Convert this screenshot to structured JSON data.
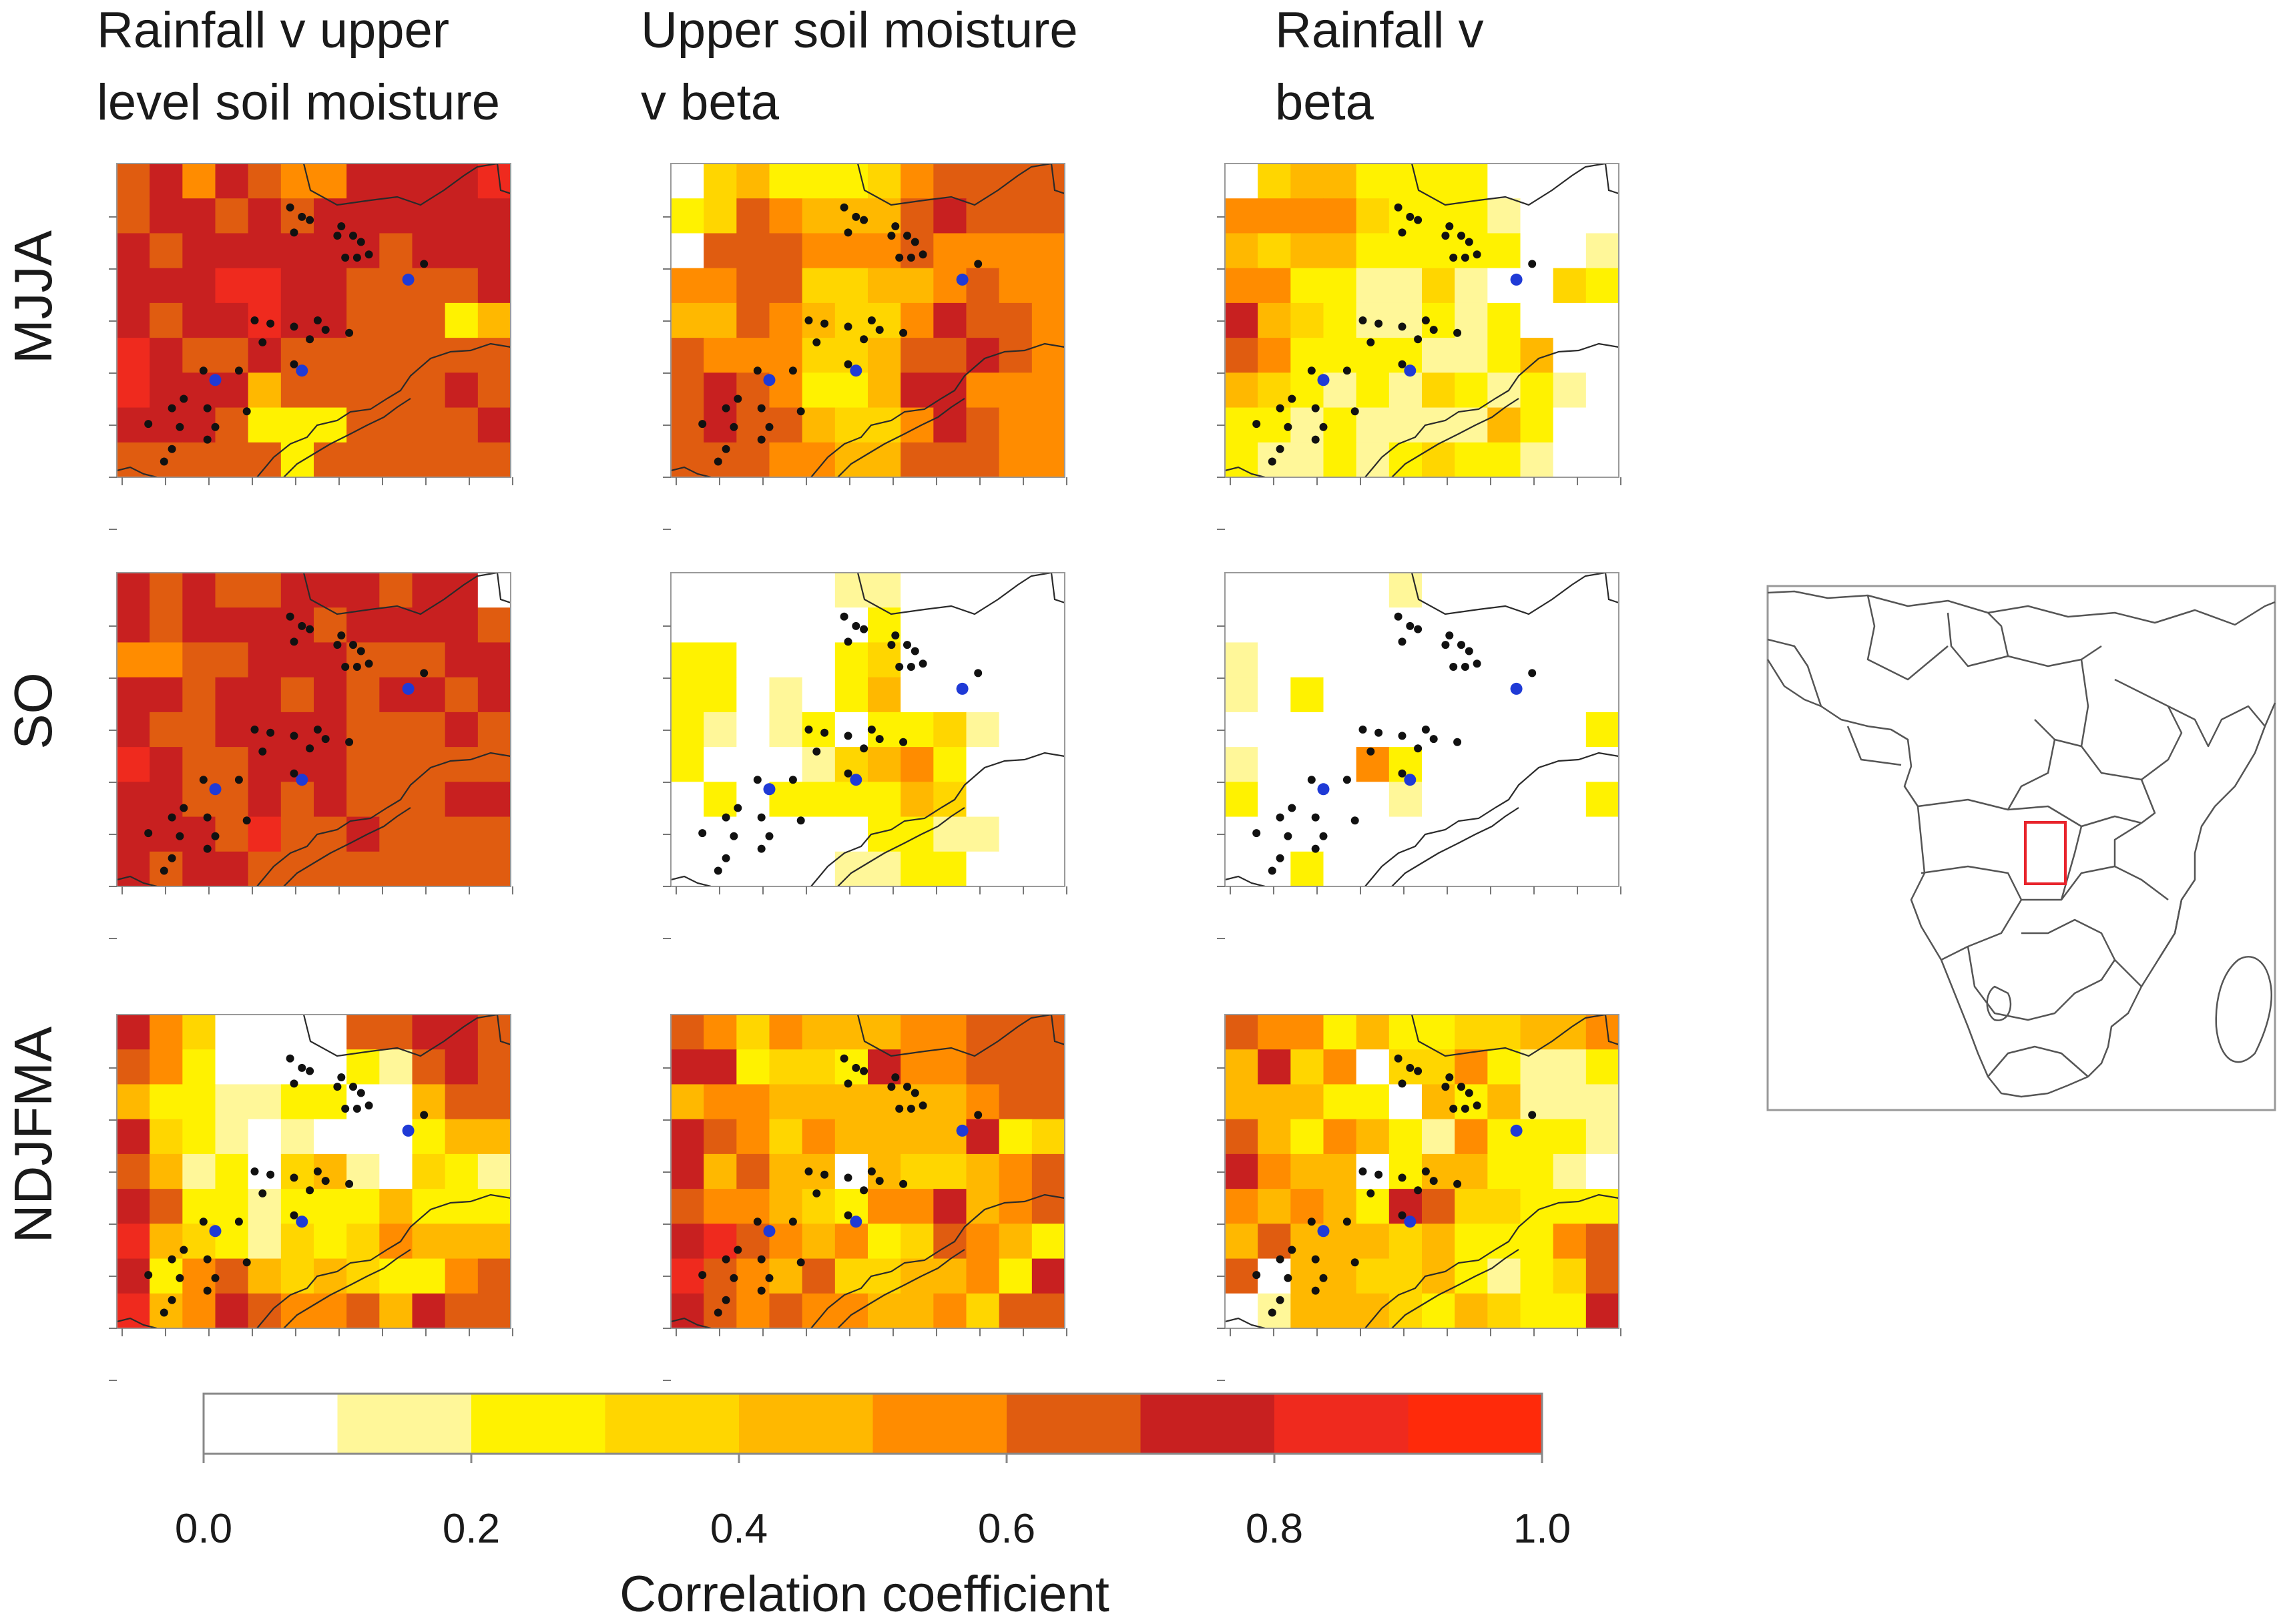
{
  "chart_data": {
    "type": "heatmap",
    "columns": [
      "Rainfall v upper\nlevel soil moisture",
      "Upper soil moisture\nv beta",
      "Rainfall v\nbeta"
    ],
    "rows": [
      "MJJA",
      "SO",
      "NDJFMA"
    ],
    "grid_size": [
      9,
      12
    ],
    "colorbar": {
      "title": "Correlation coefficient",
      "range": [
        0.0,
        1.0
      ],
      "tick_labels": [
        "0.0",
        "0.2",
        "0.4",
        "0.6",
        "0.8",
        "1.0"
      ],
      "bins": [
        {
          "from": 0.0,
          "to": 0.1,
          "color": "#ffffff"
        },
        {
          "from": 0.1,
          "to": 0.2,
          "color": "#fff799"
        },
        {
          "from": 0.2,
          "to": 0.3,
          "color": "#fff200"
        },
        {
          "from": 0.3,
          "to": 0.4,
          "color": "#ffd600"
        },
        {
          "from": 0.4,
          "to": 0.5,
          "color": "#ffb800"
        },
        {
          "from": 0.5,
          "to": 0.6,
          "color": "#ff8c00"
        },
        {
          "from": 0.6,
          "to": 0.7,
          "color": "#e05c10"
        },
        {
          "from": 0.7,
          "to": 0.8,
          "color": "#c82020"
        },
        {
          "from": 0.8,
          "to": 0.9,
          "color": "#ef2a1e"
        },
        {
          "from": 0.9,
          "to": 1.0,
          "color": "#ff2a0a"
        }
      ]
    },
    "panels": [
      {
        "column": 0,
        "row": 0,
        "grid": [
          "675765577778",
          "677676777777",
          "767777776777",
          "777887766667",
          "767787766624",
          "876676666666",
          "877746666676",
          "777622266667",
          "666662666666"
        ]
      },
      {
        "column": 1,
        "row": 0,
        "grid": [
          "034222356666",
          "236544467666",
          "066655565555",
          "556633445655",
          "446543357665",
          "655533466765",
          "676522477555",
          "676643357655",
          "666554466655"
        ]
      },
      {
        "column": 2,
        "row": 0,
        "grid": [
          "034422220000",
          "555532221000",
          "434422222001",
          "552211310032",
          "743211212000",
          "652222112400",
          "432121321210",
          "221211114200",
          "211212322100"
        ]
      },
      {
        "column": 0,
        "row": 1,
        "grid": [
          "767667776770",
          "767777677776",
          "556677766677",
          "776776767767",
          "766777766676",
          "876677766666",
          "776676766677",
          "777686676666",
          "767766666666"
        ]
      },
      {
        "column": 1,
        "row": 1,
        "grid": [
          "000001100000",
          "000000200000",
          "220002300000",
          "220102400000",
          "210120223100",
          "200013452000",
          "020222243000",
          "000000221100",
          "000001122000"
        ]
      },
      {
        "column": 2,
        "row": 1,
        "grid": [
          "000001000000",
          "000000000000",
          "100000000000",
          "102000000000",
          "000000000002",
          "100052000000",
          "200001000002",
          "000000000000",
          "002000000000"
        ]
      },
      {
        "column": 0,
        "row": 2,
        "grid": [
          "753000066776",
          "652000021676",
          "422112200466",
          "732101000244",
          "641203410321",
          "762212224222",
          "843213235444",
          "725643432256",
          "845765564766"
        ]
      },
      {
        "column": 1,
        "row": 2,
        "grid": [
          "653544455666",
          "772332755666",
          "455444444566",
          "765354444723",
          "746440433456",
          "655432557456",
          "786545236542",
          "865463344527",
          "765655445366"
        ]
      },
      {
        "column": 2,
        "row": 2,
        "grid": [
          "655242233445",
          "473503352112",
          "444220424111",
          "642542152221",
          "754402442210",
          "545427633222",
          "464443422256",
          "604433421236",
          "014443243227"
        ]
      }
    ]
  },
  "inset_map": {
    "region": "Southern Africa",
    "highlight_color": "#e8242c"
  }
}
